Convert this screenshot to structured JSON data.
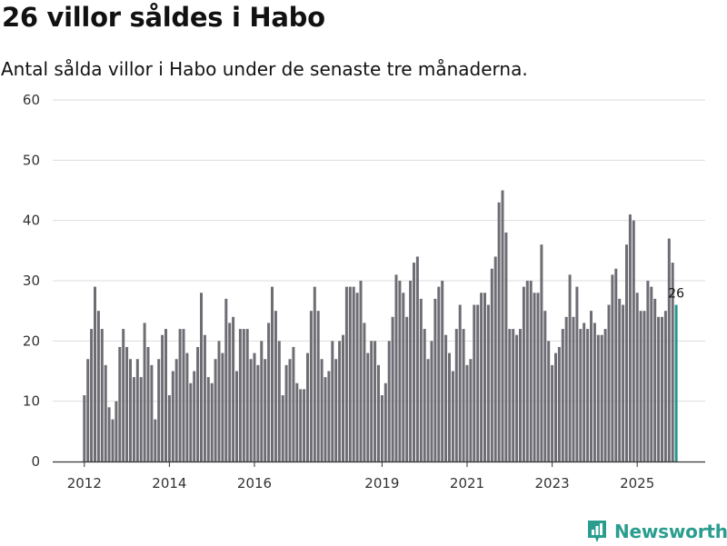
{
  "header": {
    "title": "26 villor såldes i Habo",
    "subtitle": "Antal sålda villor i Habo under de senaste tre månaderna."
  },
  "brand": {
    "name": "Newsworthy",
    "icon": "newsworthy-logo-icon"
  },
  "colors": {
    "bar": "#6e6d74",
    "highlight": "#27968b",
    "grid": "#dddddd",
    "axis": "#333333",
    "brand": "#2a9d8f"
  },
  "chart_data": {
    "type": "bar",
    "title": "26 villor såldes i Habo",
    "subtitle": "Antal sålda villor i Habo under de senaste tre månaderna.",
    "xlabel": "",
    "ylabel": "",
    "ylim": [
      0,
      60
    ],
    "yticks": [
      0,
      10,
      20,
      30,
      40,
      50,
      60
    ],
    "grid": true,
    "start": "2012-01",
    "interval": "month",
    "xticks": [
      {
        "label": "2012",
        "index": 0
      },
      {
        "label": "2014",
        "index": 24
      },
      {
        "label": "2016",
        "index": 48
      },
      {
        "label": "2019",
        "index": 84
      },
      {
        "label": "2021",
        "index": 108
      },
      {
        "label": "2023",
        "index": 132
      },
      {
        "label": "2025",
        "index": 156
      }
    ],
    "values": [
      11,
      17,
      22,
      29,
      25,
      22,
      16,
      9,
      7,
      10,
      19,
      22,
      19,
      17,
      14,
      17,
      14,
      23,
      19,
      16,
      7,
      17,
      21,
      22,
      11,
      15,
      17,
      22,
      22,
      18,
      13,
      15,
      19,
      28,
      21,
      14,
      13,
      17,
      20,
      18,
      27,
      23,
      24,
      15,
      22,
      22,
      22,
      17,
      18,
      16,
      20,
      17,
      23,
      29,
      25,
      20,
      11,
      16,
      17,
      19,
      13,
      12,
      12,
      18,
      25,
      29,
      25,
      17,
      14,
      15,
      20,
      17,
      20,
      21,
      29,
      29,
      29,
      28,
      30,
      23,
      18,
      20,
      20,
      16,
      11,
      13,
      20,
      24,
      31,
      30,
      28,
      24,
      30,
      33,
      34,
      27,
      22,
      17,
      20,
      27,
      29,
      30,
      21,
      18,
      15,
      22,
      26,
      22,
      16,
      17,
      26,
      26,
      28,
      28,
      26,
      32,
      34,
      43,
      45,
      38,
      22,
      22,
      21,
      22,
      29,
      30,
      30,
      28,
      28,
      36,
      25,
      20,
      16,
      18,
      19,
      22,
      24,
      31,
      24,
      29,
      22,
      23,
      22,
      25,
      23,
      21,
      21,
      22,
      26,
      31,
      32,
      27,
      26,
      36,
      41,
      40,
      28,
      25,
      25,
      30,
      29,
      27,
      24,
      24,
      25,
      37,
      33,
      26
    ],
    "highlight_index": 167,
    "annotations": [
      {
        "index": 167,
        "label": "26"
      }
    ]
  }
}
